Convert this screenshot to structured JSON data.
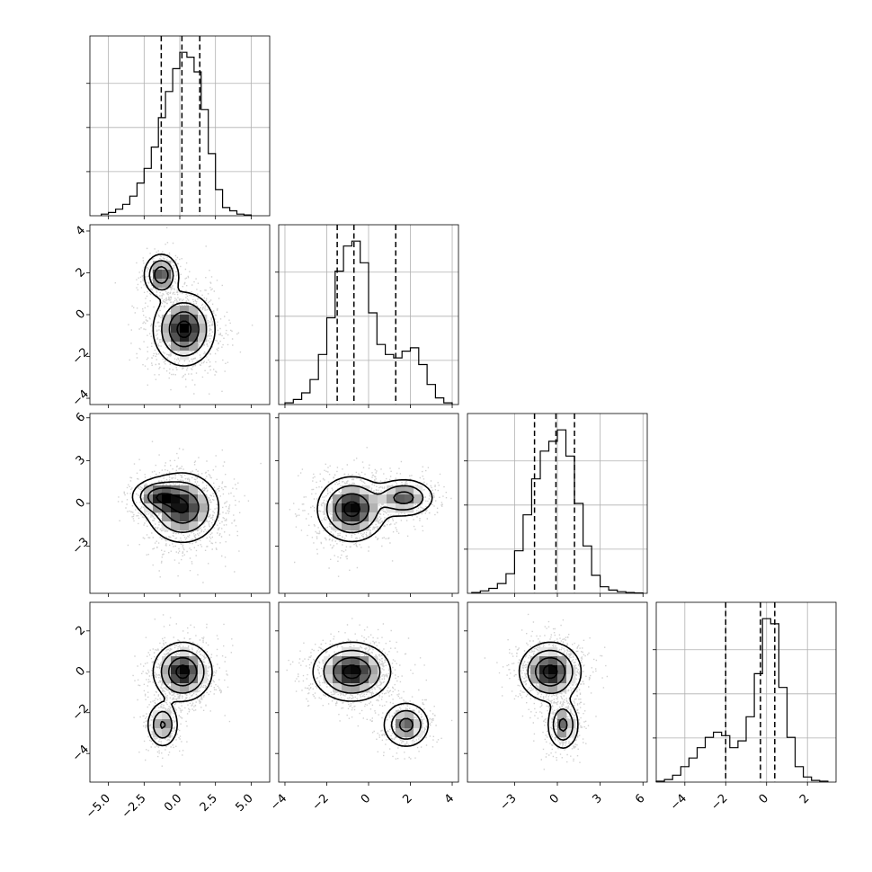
{
  "chart_data": {
    "type": "corner",
    "grid": true,
    "quantile_line_style": "dashed",
    "colors": {
      "line": "#000000",
      "grid": "#b0b0b0",
      "scatter": "#7a7a7a",
      "density_peak": "#000000"
    },
    "parameters": [
      {
        "index": 0,
        "ticks": [
          -5,
          -2.5,
          0,
          2.5,
          5
        ],
        "tick_labels": [
          "−5.0",
          "−2.5",
          "0.0",
          "2.5",
          "5.0"
        ],
        "range": [
          -6.3,
          6.3
        ]
      },
      {
        "index": 1,
        "ticks": [
          -4,
          -2,
          0,
          2,
          4
        ],
        "tick_labels": [
          "−4",
          "−2",
          "0",
          "2",
          "4"
        ],
        "range": [
          -4.3,
          4.3
        ]
      },
      {
        "index": 2,
        "ticks": [
          -3,
          0,
          3,
          6
        ],
        "tick_labels": [
          "−3",
          "0",
          "3",
          "6"
        ],
        "range": [
          -6.3,
          6.3
        ]
      },
      {
        "index": 3,
        "ticks": [
          -4,
          -2,
          0,
          2
        ],
        "tick_labels": [
          "−4",
          "−2",
          "0",
          "2"
        ],
        "range": [
          -5.4,
          3.4
        ]
      }
    ],
    "marginals": [
      {
        "param": 0,
        "quantiles": [
          -1.3,
          0.15,
          1.4
        ],
        "bins": [
          -5.5,
          -5,
          -4.5,
          -4,
          -3.5,
          -3,
          -2.5,
          -2,
          -1.5,
          -1,
          -0.5,
          0,
          0.5,
          1,
          1.5,
          2,
          2.5,
          3,
          3.5,
          4,
          4.5,
          5
        ],
        "counts": [
          0.01,
          0.02,
          0.04,
          0.07,
          0.12,
          0.2,
          0.29,
          0.42,
          0.6,
          0.76,
          0.9,
          1.0,
          0.97,
          0.88,
          0.65,
          0.38,
          0.16,
          0.05,
          0.03,
          0.01,
          0.005
        ]
      },
      {
        "param": 1,
        "quantiles": [
          -1.5,
          -0.7,
          1.3
        ],
        "bins": [
          -4,
          -3.6,
          -3.2,
          -2.8,
          -2.4,
          -2,
          -1.6,
          -1.2,
          -0.8,
          -0.4,
          0,
          0.4,
          0.8,
          1.2,
          1.6,
          2,
          2.4,
          2.8,
          3.2,
          3.6,
          4
        ],
        "counts": [
          0.01,
          0.03,
          0.07,
          0.15,
          0.3,
          0.52,
          0.8,
          0.95,
          0.98,
          0.85,
          0.55,
          0.36,
          0.3,
          0.28,
          0.32,
          0.34,
          0.24,
          0.12,
          0.04,
          0.01
        ]
      },
      {
        "param": 2,
        "quantiles": [
          -1.6,
          -0.1,
          1.2
        ],
        "bins": [
          -6,
          -5.4,
          -4.8,
          -4.2,
          -3.6,
          -3,
          -2.4,
          -1.8,
          -1.2,
          -0.6,
          0,
          0.6,
          1.2,
          1.8,
          2.4,
          3,
          3.6,
          4.2,
          4.8,
          5.4,
          6
        ],
        "counts": [
          0.005,
          0.015,
          0.03,
          0.06,
          0.12,
          0.26,
          0.48,
          0.7,
          0.87,
          0.93,
          1.0,
          0.84,
          0.55,
          0.29,
          0.11,
          0.04,
          0.02,
          0.01,
          0.005,
          0.002
        ]
      },
      {
        "param": 3,
        "quantiles": [
          -2.0,
          -0.3,
          0.4
        ],
        "bins": [
          -5.4,
          -5,
          -4.6,
          -4.2,
          -3.8,
          -3.4,
          -3,
          -2.6,
          -2.2,
          -1.8,
          -1.4,
          -1,
          -0.6,
          -0.2,
          0.2,
          0.6,
          1,
          1.4,
          1.8,
          2.2,
          2.6,
          3
        ],
        "counts": [
          0.005,
          0.015,
          0.04,
          0.09,
          0.14,
          0.2,
          0.26,
          0.29,
          0.27,
          0.2,
          0.24,
          0.38,
          0.63,
          0.95,
          0.92,
          0.55,
          0.26,
          0.09,
          0.03,
          0.01,
          0.005
        ]
      }
    ],
    "joint": [
      {
        "x": 0,
        "y": 1,
        "components": [
          {
            "mx": 0.3,
            "my": -0.7,
            "sx": 1.05,
            "sy": 0.85,
            "w": 0.78
          },
          {
            "mx": -1.3,
            "my": 1.9,
            "sx": 0.6,
            "sy": 0.5,
            "w": 0.22
          }
        ]
      },
      {
        "x": 0,
        "y": 2,
        "components": [
          {
            "mx": 0.2,
            "my": -0.3,
            "sx": 1.25,
            "sy": 1.2,
            "w": 0.8
          },
          {
            "mx": -1.6,
            "my": 0.5,
            "sx": 0.9,
            "sy": 0.6,
            "w": 0.2
          }
        ]
      },
      {
        "x": 1,
        "y": 2,
        "components": [
          {
            "mx": -0.8,
            "my": -0.4,
            "sx": 0.8,
            "sy": 1.1,
            "w": 0.72
          },
          {
            "mx": 1.7,
            "my": 0.4,
            "sx": 0.7,
            "sy": 0.65,
            "w": 0.28
          }
        ]
      },
      {
        "x": 0,
        "y": 3,
        "components": [
          {
            "mx": 0.2,
            "my": 0.0,
            "sx": 1.0,
            "sy": 0.7,
            "w": 0.78
          },
          {
            "mx": -1.2,
            "my": -2.6,
            "sx": 0.55,
            "sy": 0.55,
            "w": 0.22
          }
        ]
      },
      {
        "x": 1,
        "y": 3,
        "components": [
          {
            "mx": -0.8,
            "my": 0.0,
            "sx": 0.9,
            "sy": 0.7,
            "w": 0.74
          },
          {
            "mx": 1.8,
            "my": -2.6,
            "sx": 0.55,
            "sy": 0.55,
            "w": 0.26
          }
        ]
      },
      {
        "x": 2,
        "y": 3,
        "components": [
          {
            "mx": -0.5,
            "my": 0.0,
            "sx": 1.05,
            "sy": 0.7,
            "w": 0.76
          },
          {
            "mx": 0.4,
            "my": -2.6,
            "sx": 0.55,
            "sy": 0.6,
            "w": 0.24
          }
        ]
      }
    ]
  }
}
